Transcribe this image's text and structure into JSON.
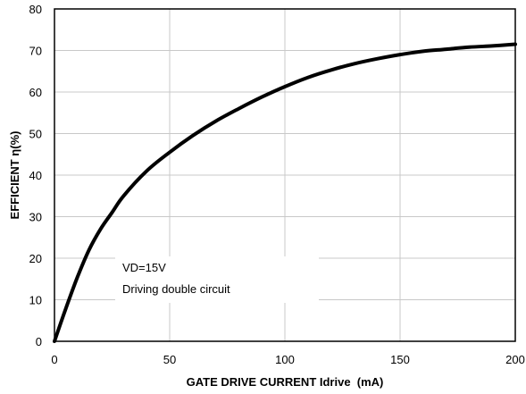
{
  "chart_data": {
    "type": "line",
    "title": "",
    "xlabel": "GATE DRIVE CURRENT Idrive  (mA)",
    "ylabel": "EFFICIENT η(%)",
    "xlim": [
      0,
      200
    ],
    "ylim": [
      0,
      80
    ],
    "xticks": [
      "0",
      "50",
      "100",
      "150",
      "200"
    ],
    "yticks": [
      "0",
      "10",
      "20",
      "30",
      "40",
      "50",
      "60",
      "70",
      "80"
    ],
    "grid": true,
    "legend": "none",
    "annotation": [
      "VD=15V",
      "Driving double circuit"
    ],
    "series": [
      {
        "color": "#000000",
        "x": [
          0,
          5,
          10,
          15,
          20,
          25,
          30,
          40,
          50,
          60,
          70,
          80,
          90,
          100,
          110,
          120,
          130,
          140,
          150,
          160,
          170,
          180,
          190,
          200
        ],
        "y": [
          0,
          8,
          15.5,
          22,
          27,
          31,
          35,
          41,
          45.5,
          49.5,
          53,
          56,
          58.8,
          61.3,
          63.5,
          65.3,
          66.8,
          68,
          69,
          69.8,
          70.3,
          70.8,
          71.1,
          71.5
        ]
      }
    ]
  }
}
